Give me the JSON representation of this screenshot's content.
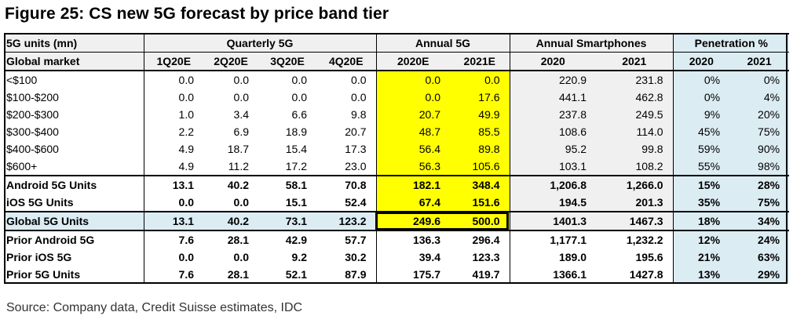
{
  "title": "Figure 25: CS new 5G forecast by price band tier",
  "source": "Source: Company data, Credit Suisse estimates, IDC",
  "header_groups": {
    "units_label": "5G units (mn)",
    "quarterly": "Quarterly 5G",
    "annual": "Annual 5G",
    "smartphones": "Annual Smartphones",
    "penetration": "Penetration %"
  },
  "columns": [
    "Global market",
    "1Q20E",
    "2Q20E",
    "3Q20E",
    "4Q20E",
    "2020E",
    "2021E",
    "2020",
    "2021",
    "2020",
    "2021"
  ],
  "rows": [
    {
      "label": "<$100",
      "values": [
        "0.0",
        "0.0",
        "0.0",
        "0.0",
        "0.0",
        "0.0",
        "220.9",
        "231.8",
        "0%",
        "0%"
      ]
    },
    {
      "label": "$100-$200",
      "values": [
        "0.0",
        "0.0",
        "0.0",
        "0.0",
        "0.0",
        "17.6",
        "441.1",
        "462.8",
        "0%",
        "4%"
      ]
    },
    {
      "label": "$200-$300",
      "values": [
        "1.0",
        "3.4",
        "6.6",
        "9.8",
        "20.7",
        "49.9",
        "237.8",
        "249.5",
        "9%",
        "20%"
      ]
    },
    {
      "label": "$300-$400",
      "values": [
        "2.2",
        "6.9",
        "18.9",
        "20.7",
        "48.7",
        "85.5",
        "108.6",
        "114.0",
        "45%",
        "75%"
      ]
    },
    {
      "label": "$400-$600",
      "values": [
        "4.9",
        "18.7",
        "15.4",
        "17.3",
        "56.4",
        "89.8",
        "95.2",
        "99.8",
        "59%",
        "90%"
      ]
    },
    {
      "label": "$600+",
      "values": [
        "4.9",
        "11.2",
        "17.2",
        "23.0",
        "56.3",
        "105.6",
        "103.1",
        "108.2",
        "55%",
        "98%"
      ]
    },
    {
      "label": "Android 5G Units",
      "values": [
        "13.1",
        "40.2",
        "58.1",
        "70.8",
        "182.1",
        "348.4",
        "1,206.8",
        "1,266.0",
        "15%",
        "28%"
      ]
    },
    {
      "label": "iOS 5G Units",
      "values": [
        "0.0",
        "0.0",
        "15.1",
        "52.4",
        "67.4",
        "151.6",
        "194.5",
        "201.3",
        "35%",
        "75%"
      ]
    },
    {
      "label": "Global 5G Units",
      "values": [
        "13.1",
        "40.2",
        "73.1",
        "123.2",
        "249.6",
        "500.0",
        "1401.3",
        "1467.3",
        "18%",
        "34%"
      ]
    },
    {
      "label": "Prior Android 5G",
      "values": [
        "7.6",
        "28.1",
        "42.9",
        "57.7",
        "136.3",
        "296.4",
        "1,177.1",
        "1,232.2",
        "12%",
        "24%"
      ]
    },
    {
      "label": "Prior iOS 5G",
      "values": [
        "0.0",
        "0.0",
        "9.2",
        "30.2",
        "39.4",
        "123.3",
        "189.0",
        "195.6",
        "21%",
        "63%"
      ]
    },
    {
      "label": "Prior 5G Units",
      "values": [
        "7.6",
        "28.1",
        "52.1",
        "87.9",
        "175.7",
        "419.7",
        "1366.1",
        "1427.8",
        "13%",
        "29%"
      ]
    }
  ],
  "colors": {
    "annual_highlight": "#ffff00",
    "penetration_bg": "#dcecf3",
    "grey_bg": "#f0f0f0"
  }
}
